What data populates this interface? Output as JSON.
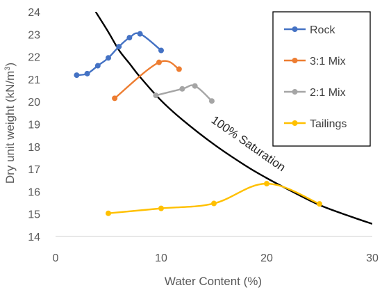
{
  "chart_data": {
    "type": "scatter",
    "xlabel": "Water Content (%)",
    "ylabel_main": "Dry unit weight (kN/m",
    "ylabel_sup": "3",
    "ylabel_tail": ")",
    "xlim": [
      0,
      30
    ],
    "ylim": [
      14,
      24
    ],
    "x_ticks": [
      0,
      10,
      20,
      30
    ],
    "y_ticks": [
      14,
      15,
      16,
      17,
      18,
      19,
      20,
      21,
      22,
      23,
      24
    ],
    "grid": false,
    "legend_position": "top-right",
    "series": [
      {
        "name": "Rock",
        "color": "#4472C4",
        "x": [
          2,
          3,
          4,
          5,
          6,
          7,
          8,
          10
        ],
        "y": [
          21.18,
          21.25,
          21.6,
          21.95,
          22.45,
          22.85,
          23.02,
          22.28
        ]
      },
      {
        "name": "3:1 Mix",
        "color": "#ED7D31",
        "x": [
          5.6,
          9.8,
          11.7
        ],
        "y": [
          20.15,
          21.75,
          21.45
        ]
      },
      {
        "name": "2:1 Mix",
        "color": "#A5A5A5",
        "x": [
          9.5,
          12,
          13.2,
          14.8
        ],
        "y": [
          20.28,
          20.57,
          20.7,
          20.03
        ]
      },
      {
        "name": "Tailings",
        "color": "#FFC000",
        "x": [
          5,
          10,
          15,
          20,
          25
        ],
        "y": [
          15.03,
          15.25,
          15.47,
          16.35,
          15.45
        ]
      }
    ],
    "saturation_curve": {
      "label": "100% Saturation",
      "color": "#000000",
      "x": [
        3.8,
        5,
        6,
        7,
        8,
        10,
        12,
        15,
        18,
        20,
        22,
        25,
        28,
        30
      ],
      "y": [
        24.0,
        23.1,
        22.3,
        21.7,
        21.1,
        20.05,
        19.2,
        18.1,
        17.15,
        16.6,
        16.1,
        15.4,
        14.88,
        14.56
      ]
    }
  }
}
